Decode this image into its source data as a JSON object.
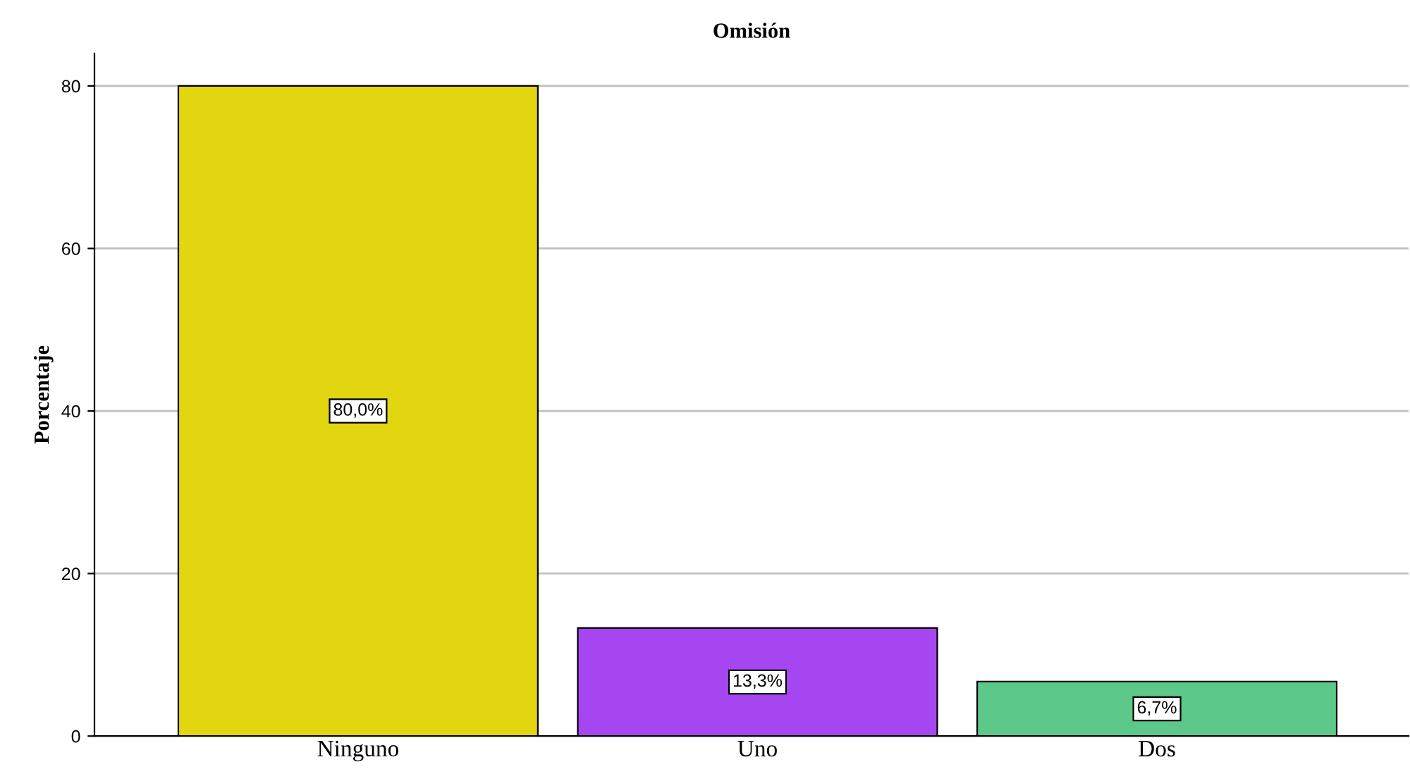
{
  "chart_data": {
    "type": "bar",
    "title": "Omisión",
    "ylabel": "Porcentaje",
    "categories": [
      "Ninguno",
      "Uno",
      "Dos"
    ],
    "values": [
      80.0,
      13.3,
      6.7
    ],
    "colors": [
      "#e1d60f",
      "#a646f0",
      "#5cc98a"
    ],
    "value_labels": [
      "80,0%",
      "13,3%",
      "6,7%"
    ],
    "ylim": [
      0,
      84
    ],
    "yticks": [
      0,
      20,
      40,
      60,
      80
    ],
    "grid": "y"
  }
}
